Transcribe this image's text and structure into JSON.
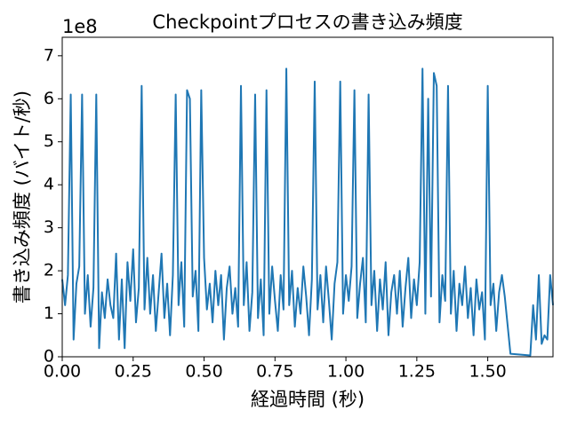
{
  "chart_data": {
    "type": "line",
    "title": "Checkpointプロセスの書き込み頻度",
    "x_label": "経過時間 (秒)",
    "y_label": "書き込み頻度 (バイト/秒)",
    "y_offset_label": "1e8",
    "color": "#1f77b4",
    "xlim": [
      0,
      1.73
    ],
    "ylim": [
      0,
      7.43
    ],
    "xticks": [
      {
        "value": 0,
        "label": "0.00"
      },
      {
        "value": 0.25,
        "label": "0.25"
      },
      {
        "value": 0.5,
        "label": "0.50"
      },
      {
        "value": 0.75,
        "label": "0.75"
      },
      {
        "value": 1,
        "label": "1.00"
      },
      {
        "value": 1.25,
        "label": "1.25"
      },
      {
        "value": 1.5,
        "label": "1.50"
      }
    ],
    "yticks": [
      0,
      1,
      2,
      3,
      4,
      5,
      6,
      7
    ],
    "x": [
      0,
      0.01,
      0.02,
      0.03,
      0.04,
      0.05,
      0.06,
      0.07,
      0.08,
      0.09,
      0.1,
      0.11,
      0.12,
      0.13,
      0.14,
      0.15,
      0.16,
      0.17,
      0.18,
      0.19,
      0.2,
      0.21,
      0.22,
      0.23,
      0.24,
      0.25,
      0.26,
      0.27,
      0.28,
      0.29,
      0.3,
      0.31,
      0.32,
      0.33,
      0.34,
      0.35,
      0.36,
      0.37,
      0.38,
      0.39,
      0.4,
      0.41,
      0.42,
      0.43,
      0.44,
      0.45,
      0.46,
      0.47,
      0.48,
      0.49,
      0.5,
      0.51,
      0.52,
      0.53,
      0.54,
      0.55,
      0.56,
      0.57,
      0.58,
      0.59,
      0.6,
      0.61,
      0.62,
      0.63,
      0.64,
      0.65,
      0.66,
      0.67,
      0.68,
      0.69,
      0.7,
      0.71,
      0.72,
      0.73,
      0.74,
      0.75,
      0.76,
      0.77,
      0.78,
      0.79,
      0.8,
      0.81,
      0.82,
      0.83,
      0.84,
      0.85,
      0.86,
      0.87,
      0.88,
      0.89,
      0.9,
      0.91,
      0.92,
      0.93,
      0.94,
      0.95,
      0.96,
      0.97,
      0.98,
      0.99,
      1,
      1.01,
      1.02,
      1.03,
      1.04,
      1.05,
      1.06,
      1.07,
      1.08,
      1.09,
      1.1,
      1.11,
      1.12,
      1.13,
      1.14,
      1.15,
      1.16,
      1.17,
      1.18,
      1.19,
      1.2,
      1.21,
      1.22,
      1.23,
      1.24,
      1.25,
      1.26,
      1.27,
      1.28,
      1.29,
      1.3,
      1.31,
      1.32,
      1.33,
      1.34,
      1.35,
      1.36,
      1.37,
      1.38,
      1.39,
      1.4,
      1.41,
      1.42,
      1.43,
      1.44,
      1.45,
      1.46,
      1.47,
      1.48,
      1.49,
      1.5,
      1.51,
      1.52,
      1.53,
      1.54,
      1.55,
      1.56,
      1.58,
      1.65,
      1.66,
      1.67,
      1.68,
      1.69,
      1.7,
      1.71,
      1.72,
      1.73
    ],
    "values": [
      1.8,
      1.2,
      1.9,
      6.1,
      0.4,
      1.7,
      2.1,
      6.1,
      1.0,
      1.9,
      0.7,
      1.6,
      6.1,
      0.2,
      1.5,
      0.9,
      1.8,
      1.2,
      0.9,
      2.4,
      0.4,
      1.8,
      0.2,
      2.2,
      1.3,
      2.5,
      0.8,
      1.6,
      6.3,
      1.1,
      2.3,
      1.0,
      1.9,
      0.6,
      1.5,
      2.4,
      0.9,
      1.7,
      0.5,
      1.9,
      6.1,
      1.2,
      2.2,
      0.7,
      6.2,
      6.0,
      1.4,
      2.0,
      0.6,
      6.2,
      2.3,
      1.1,
      1.7,
      0.8,
      2.0,
      1.2,
      1.9,
      0.4,
      1.6,
      2.1,
      1.0,
      1.6,
      0.7,
      6.3,
      1.2,
      2.2,
      0.6,
      1.5,
      6.1,
      0.9,
      1.8,
      0.5,
      6.2,
      1.0,
      2.1,
      1.3,
      0.6,
      1.9,
      1.1,
      6.7,
      1.2,
      2.0,
      0.7,
      1.6,
      1.0,
      2.1,
      1.4,
      0.5,
      1.8,
      6.4,
      1.1,
      1.9,
      0.8,
      2.1,
      1.3,
      0.4,
      1.7,
      2.2,
      6.4,
      1.0,
      1.9,
      1.3,
      2.1,
      6.2,
      0.9,
      1.7,
      2.3,
      0.8,
      6.1,
      1.2,
      2.0,
      0.6,
      1.8,
      1.1,
      2.2,
      0.5,
      1.5,
      1.9,
      1.0,
      2.0,
      0.7,
      1.6,
      2.3,
      0.9,
      1.8,
      1.2,
      2.2,
      6.7,
      1.0,
      6.0,
      1.4,
      6.6,
      6.3,
      0.8,
      1.9,
      1.3,
      6.3,
      1.0,
      2.0,
      0.6,
      1.7,
      1.2,
      2.1,
      0.9,
      1.6,
      0.5,
      1.8,
      1.1,
      1.5,
      0.4,
      6.3,
      1.2,
      1.7,
      0.6,
      1.5,
      1.9,
      1.4,
      0.07,
      0.03,
      1.2,
      0.4,
      1.9,
      0.3,
      0.5,
      0.4,
      1.9,
      1.2
    ]
  }
}
